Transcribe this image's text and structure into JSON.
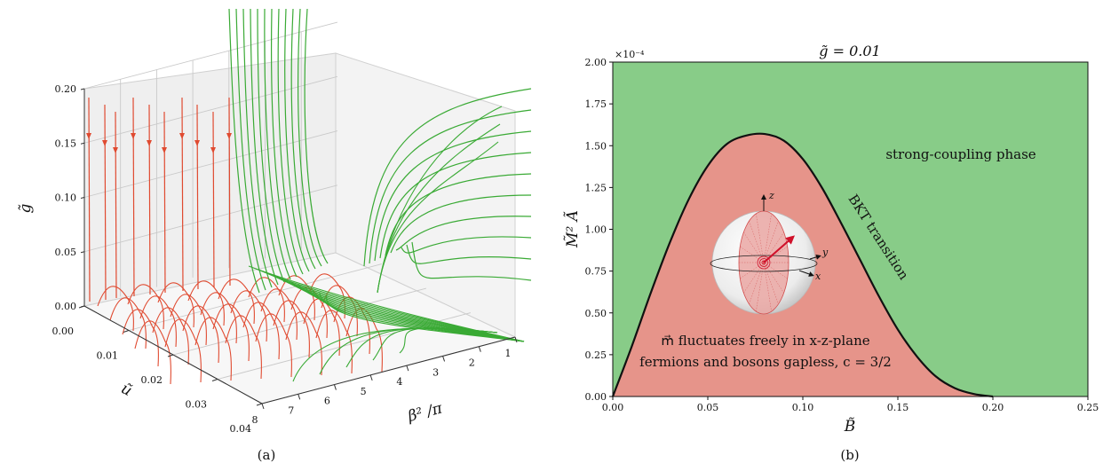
{
  "panel_a": {
    "caption": "(a)",
    "axis_labels": {
      "g": "g̃",
      "u": "ũ",
      "beta": "β² /π"
    },
    "g_ticks": [
      "0.00",
      "0.05",
      "0.10",
      "0.15",
      "0.20"
    ],
    "u_ticks": [
      "0.00",
      "0.01",
      "0.02",
      "0.03",
      "0.04"
    ],
    "beta_ticks": [
      "8",
      "7",
      "6",
      "5",
      "4",
      "3",
      "2",
      "1"
    ],
    "colors": {
      "flow_weak": "#e04a30",
      "flow_strong": "#3aaa35",
      "pane": "#efefef",
      "grid": "#c9c9c9"
    }
  },
  "chart_data": [
    {
      "type": "line",
      "panel": "(a)",
      "title": "",
      "x_axis": {
        "label": "β² /π",
        "range": [
          1,
          8
        ]
      },
      "y_axis": {
        "label": "ũ",
        "range": [
          0.0,
          0.04
        ]
      },
      "z_axis": {
        "label": "g̃",
        "range": [
          0.0,
          0.2
        ]
      },
      "series": [
        {
          "color": "#e04a30",
          "description_values": "flows toward g=0"
        },
        {
          "color": "#3aaa35",
          "description_values": "flows to strong coupling"
        }
      ]
    },
    {
      "type": "area",
      "panel": "(b)",
      "title": "g̃ = 0.01",
      "xlabel": "B̃",
      "ylabel": "M̃² Ã",
      "y_multiplier": "×10⁻⁴",
      "xlim": [
        0,
        0.25
      ],
      "ylim": [
        0,
        2.0
      ],
      "x_ticks": [
        "0.00",
        "0.05",
        "0.10",
        "0.15",
        "0.20",
        "0.25"
      ],
      "y_ticks": [
        "0.00",
        "0.25",
        "0.50",
        "0.75",
        "1.00",
        "1.25",
        "1.50",
        "1.75",
        "2.00"
      ],
      "boundary": {
        "x": [
          0.0,
          0.01,
          0.02,
          0.03,
          0.04,
          0.05,
          0.06,
          0.07,
          0.08,
          0.09,
          0.1,
          0.11,
          0.12,
          0.13,
          0.14,
          0.15,
          0.16,
          0.17,
          0.18,
          0.19,
          0.2
        ],
        "y": [
          0.0,
          0.3,
          0.62,
          0.92,
          1.18,
          1.38,
          1.51,
          1.56,
          1.57,
          1.53,
          1.42,
          1.25,
          1.04,
          0.82,
          0.6,
          0.4,
          0.24,
          0.12,
          0.05,
          0.015,
          0.0
        ]
      },
      "regions": [
        {
          "label": "strong-coupling phase",
          "color": "#88cc88"
        },
        {
          "label": "m⃗ fluctuates freely in x-z-plane",
          "label2": "fermions and bosons gapless, c = 3/2",
          "color": "#e6948a"
        }
      ],
      "annotation": "BKT transition",
      "inset_axes": [
        "z",
        "y",
        "x"
      ]
    }
  ],
  "panel_b": {
    "caption": "(b)"
  }
}
